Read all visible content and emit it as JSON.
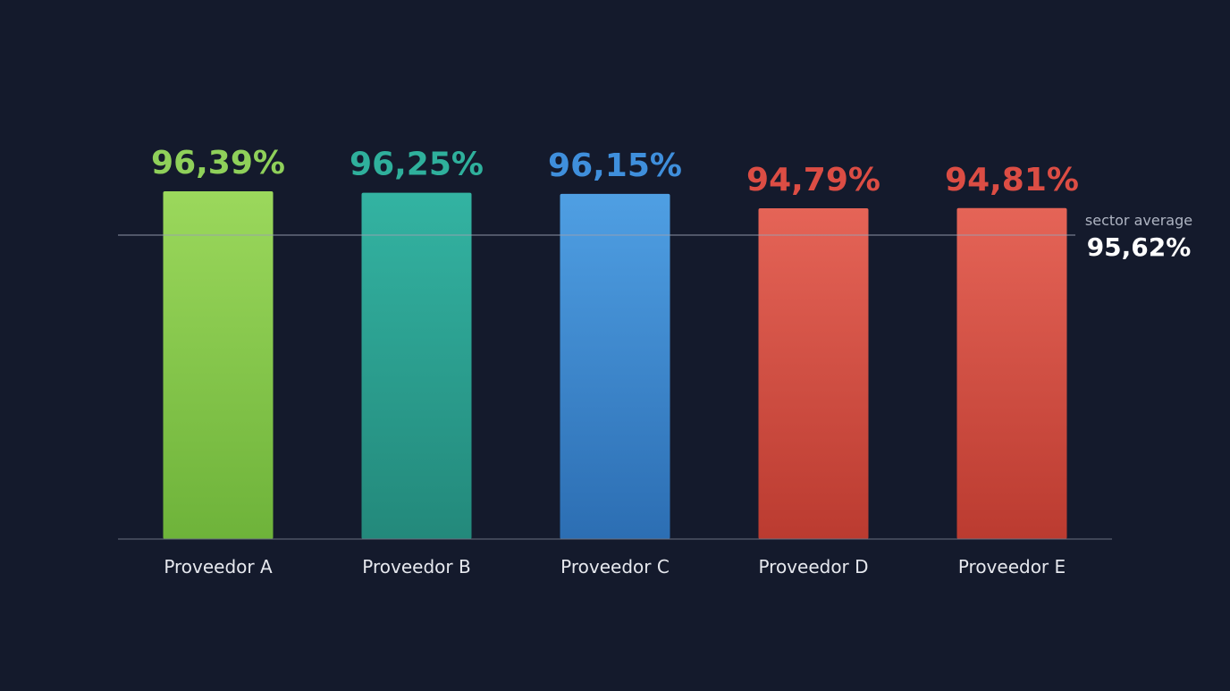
{
  "chart_data": {
    "type": "bar",
    "categories": [
      "Proveedor A",
      "Proveedor B",
      "Proveedor C",
      "Proveedor D",
      "Proveedor E"
    ],
    "values": [
      96.39,
      96.25,
      96.15,
      94.79,
      94.81
    ],
    "value_labels": [
      "96,39%",
      "96,25%",
      "96,15%",
      "94,79%",
      "94,81%"
    ],
    "bar_colors": [
      [
        "#9bd85c",
        "#6eb33a"
      ],
      [
        "#33b3a2",
        "#23897b"
      ],
      [
        "#4f9fe3",
        "#2c6eb3"
      ],
      [
        "#e56457",
        "#bb3b30"
      ],
      [
        "#e56457",
        "#bb3b30"
      ]
    ],
    "label_colors": [
      "#8fd05a",
      "#2fb09c",
      "#3f8fdc",
      "#dc4d44",
      "#dc4d44"
    ],
    "reference_line": {
      "caption": "sector average",
      "value": 95.62,
      "value_label": "95,62%"
    },
    "title": "",
    "xlabel": "",
    "ylabel": "",
    "y_axis_visible": false,
    "grid": false
  }
}
